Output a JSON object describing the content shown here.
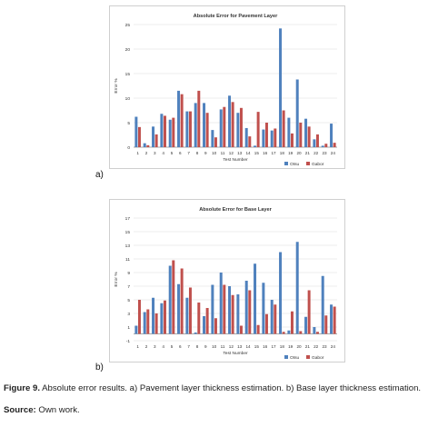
{
  "figure": {
    "panel_a_letter": "a)",
    "panel_b_letter": "b)",
    "caption_label": "Figure 9.",
    "caption_text": "Absolute error results. a) Pavement layer thickness estimation. b) Base layer thickness estimation.",
    "source_label": "Source:",
    "source_text": "Own work."
  },
  "colors": {
    "otsu": "#4f81bd",
    "gabor": "#c0504d",
    "grid": "#d9d9d9",
    "axis": "#8c8c8c"
  },
  "chart_data": [
    {
      "type": "bar",
      "title": "Absolute Error for Pavement Layer",
      "xlabel": "Test Number",
      "ylabel": "Error %",
      "ylim": [
        0,
        25
      ],
      "yticks": [
        0,
        5,
        10,
        15,
        20,
        25
      ],
      "yticks_labels": [
        "0",
        "5",
        "10",
        "15",
        "20",
        "25"
      ],
      "grid": true,
      "legend_position": "bottom-right",
      "categories": [
        "1",
        "2",
        "3",
        "4",
        "5",
        "6",
        "7",
        "8",
        "9",
        "10",
        "11",
        "12",
        "13",
        "14",
        "15",
        "16",
        "17",
        "18",
        "19",
        "20",
        "21",
        "22",
        "23",
        "24"
      ],
      "series": [
        {
          "name": "Otsu",
          "values": [
            6.2,
            0.8,
            4.2,
            6.8,
            5.6,
            11.5,
            7.3,
            9.0,
            9.0,
            3.5,
            7.7,
            10.5,
            7.0,
            3.9,
            0.3,
            3.6,
            3.4,
            24.2,
            6.0,
            13.8,
            5.8,
            1.6,
            0.3,
            4.8
          ]
        },
        {
          "name": "Gabor",
          "values": [
            4.1,
            0.4,
            2.6,
            6.4,
            6.0,
            10.8,
            7.3,
            11.5,
            7.0,
            2.0,
            8.2,
            9.2,
            8.0,
            2.2,
            7.2,
            5.0,
            3.8,
            7.5,
            2.8,
            5.0,
            4.2,
            2.6,
            0.7,
            0.9
          ]
        }
      ]
    },
    {
      "type": "bar",
      "title": "Absolute Error for Base Layer",
      "xlabel": "Test Number",
      "ylabel": "Error %",
      "ylim": [
        -1,
        17
      ],
      "yticks": [
        -1,
        1,
        3,
        5,
        7,
        9,
        11,
        13,
        15,
        17
      ],
      "yticks_labels": [
        "-1",
        "1",
        "3",
        "5",
        "7",
        "9",
        "11",
        "13",
        "15",
        "17"
      ],
      "grid": true,
      "legend_position": "bottom-right",
      "categories": [
        "1",
        "2",
        "3",
        "4",
        "5",
        "6",
        "7",
        "8",
        "9",
        "10",
        "11",
        "12",
        "13",
        "14",
        "15",
        "16",
        "17",
        "18",
        "19",
        "20",
        "21",
        "22",
        "23",
        "24"
      ],
      "series": [
        {
          "name": "Otsu",
          "values": [
            1.2,
            3.2,
            5.3,
            4.5,
            10.0,
            7.3,
            5.3,
            0.2,
            2.6,
            7.2,
            9.0,
            7.0,
            5.8,
            7.8,
            10.3,
            7.5,
            5.0,
            12.0,
            0.5,
            13.5,
            2.5,
            1.0,
            8.5,
            4.3
          ]
        },
        {
          "name": "Gabor",
          "values": [
            5.0,
            3.6,
            3.0,
            4.9,
            10.8,
            9.6,
            6.8,
            4.6,
            3.8,
            2.3,
            7.2,
            5.7,
            1.2,
            6.4,
            1.3,
            2.9,
            4.3,
            0.3,
            3.3,
            0.4,
            6.4,
            0.3,
            2.7,
            4.0
          ]
        }
      ]
    }
  ]
}
